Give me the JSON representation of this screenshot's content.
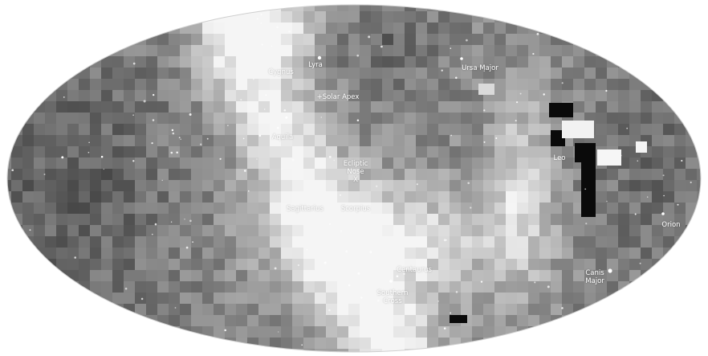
{
  "map": {
    "projection": "all-sky ellipse",
    "colors": {
      "background": "#ffffff",
      "label": "#ffffff",
      "dark_patch": "#0a0a0a",
      "band_light": "#e4e4e4",
      "sky_mid": "#8e8e8e"
    },
    "labels": {
      "cygnus": "Cygnus",
      "lyra": "Lyra",
      "ursa_major": "Ursa Major",
      "solar_apex": "+Solar Apex",
      "aquila": "Aquila",
      "ecliptic_nose": "Ecliptic\nNose\nX",
      "leo": "Leo",
      "sagittarius": "Sagittarius",
      "scorpius": "Scorpius",
      "orion": "Orion",
      "centaurus": "Centaurus",
      "canis_major": "Canis\nMajor",
      "southern_cross": "Southern\nCross"
    }
  }
}
